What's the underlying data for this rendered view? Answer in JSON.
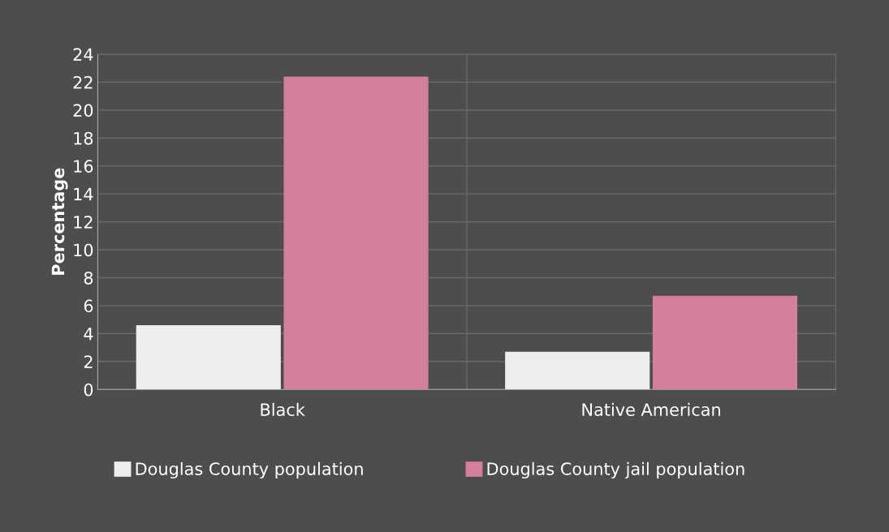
{
  "chart_data": {
    "type": "bar",
    "ylabel": "Percentage",
    "categories": [
      "Black",
      "Native American"
    ],
    "series": [
      {
        "name": "Douglas County population",
        "color": "#eeeeee",
        "values": [
          4.6,
          2.7
        ]
      },
      {
        "name": "Douglas County jail population",
        "color": "#d4809c",
        "values": [
          22.4,
          6.7
        ]
      }
    ],
    "ylim": [
      0,
      24
    ],
    "yticks": [
      0,
      2,
      4,
      6,
      8,
      10,
      12,
      14,
      16,
      18,
      20,
      22,
      24
    ],
    "grid": true,
    "legend": "bottom"
  }
}
